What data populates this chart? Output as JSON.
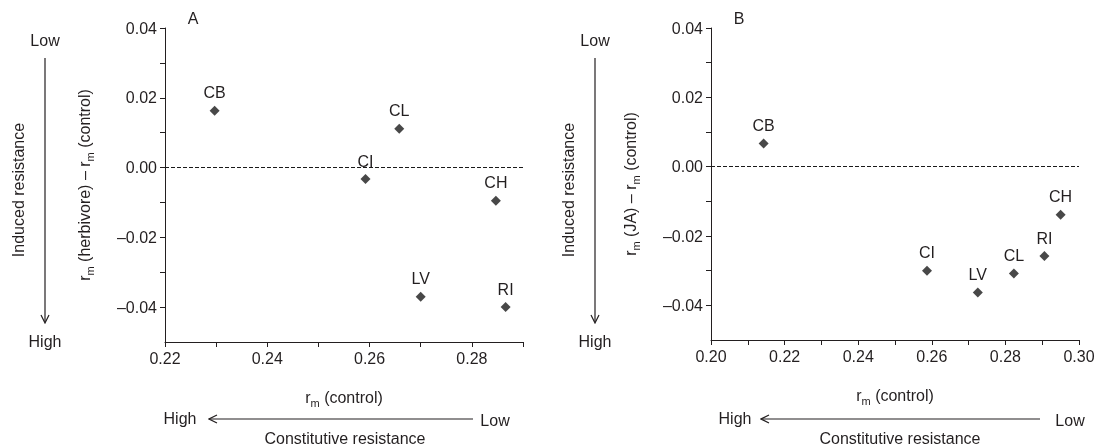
{
  "chart_data": [
    {
      "type": "scatter",
      "title": "A",
      "xlabel": "r$_{m}$ (control)",
      "ylabel": "r$_{m}$ (herbivore) – r$_{m}$ (control)",
      "marker": "diamond",
      "grid": false,
      "x": [
        0.2297,
        0.2658,
        0.2592,
        0.2847,
        0.27,
        0.2866
      ],
      "series": [
        {
          "color": "#1a1a1a",
          "values": [
            0.0163,
            0.0111,
            -0.0033,
            -0.0095,
            -0.037,
            -0.04
          ]
        }
      ],
      "xlim": [
        0.22,
        0.29
      ],
      "xticks": [
        {
          "value": 0.22,
          "label": "0.22"
        },
        {
          "value": 0.23,
          "label": null
        },
        {
          "value": 0.24,
          "label": "0.24"
        },
        {
          "value": 0.25,
          "label": null
        },
        {
          "value": 0.26,
          "label": "0.26"
        },
        {
          "value": 0.27,
          "label": null
        },
        {
          "value": 0.28,
          "label": "0.28"
        },
        {
          "value": 0.29,
          "label": null
        }
      ],
      "ylim": [
        -0.05,
        0.04
      ],
      "yticks": [
        {
          "value": -0.04,
          "label": "–0.04"
        },
        {
          "value": -0.03,
          "label": null
        },
        {
          "value": -0.02,
          "label": "–0.02"
        },
        {
          "value": -0.01,
          "label": null
        },
        {
          "value": 0,
          "label": "0.00"
        },
        {
          "value": 0.01,
          "label": null
        },
        {
          "value": 0.02,
          "label": "0.02"
        },
        {
          "value": 0.03,
          "label": null
        },
        {
          "value": 0.04,
          "label": "0.04"
        }
      ],
      "ref_lines": [
        {
          "axis": "y",
          "value": 0,
          "line_style": "dashed",
          "color": "#1a1a1a"
        }
      ],
      "annotations": [
        "Low",
        "High",
        "Induced resistance",
        "High",
        "Low",
        "Constitutive resistance",
        {
          "text": "CB",
          "x": 0.2297,
          "y": 0.0163
        },
        {
          "text": "CL",
          "x": 0.2658,
          "y": 0.0111
        },
        {
          "text": "CI",
          "x": 0.2592,
          "y": -0.0033
        },
        {
          "text": "CH",
          "x": 0.2847,
          "y": -0.0095
        },
        {
          "text": "LV",
          "x": 0.27,
          "y": -0.037
        },
        {
          "text": "RI",
          "x": 0.2866,
          "y": -0.04
        }
      ]
    },
    {
      "type": "scatter",
      "title": "B",
      "xlabel": "r$_{m}$ (control)",
      "ylabel": "r$_{m}$ (JA) – r$_{m}$ (control)",
      "marker": "diamond",
      "grid": false,
      "x": [
        0.2143,
        0.2587,
        0.2725,
        0.2823,
        0.2906,
        0.295
      ],
      "series": [
        {
          "color": "#1a1a1a",
          "values": [
            0.0067,
            -0.03,
            -0.0363,
            -0.0308,
            -0.0258,
            -0.0139
          ]
        }
      ],
      "xlim": [
        0.2,
        0.3
      ],
      "xticks": [
        {
          "value": 0.2,
          "label": "0.20"
        },
        {
          "value": 0.21,
          "label": null
        },
        {
          "value": 0.22,
          "label": "0.22"
        },
        {
          "value": 0.23,
          "label": null
        },
        {
          "value": 0.24,
          "label": "0.24"
        },
        {
          "value": 0.25,
          "label": null
        },
        {
          "value": 0.26,
          "label": "0.26"
        },
        {
          "value": 0.27,
          "label": null
        },
        {
          "value": 0.28,
          "label": "0.28"
        },
        {
          "value": 0.29,
          "label": null
        },
        {
          "value": 0.3,
          "label": "0.30"
        }
      ],
      "ylim": [
        -0.05,
        0.04
      ],
      "yticks": [
        {
          "value": -0.04,
          "label": "–0.04"
        },
        {
          "value": -0.03,
          "label": null
        },
        {
          "value": -0.02,
          "label": "–0.02"
        },
        {
          "value": -0.01,
          "label": null
        },
        {
          "value": 0,
          "label": "0.00"
        },
        {
          "value": 0.01,
          "label": null
        },
        {
          "value": 0.02,
          "label": "0.02"
        },
        {
          "value": 0.03,
          "label": null
        },
        {
          "value": 0.04,
          "label": "0.04"
        }
      ],
      "ref_lines": [
        {
          "axis": "y",
          "value": 0,
          "line_style": "dashed",
          "color": "#1a1a1a"
        }
      ],
      "annotations": [
        "Low",
        "High",
        "Induced resistance",
        "High",
        "Low",
        "Constitutive resistance",
        {
          "text": "CB",
          "x": 0.2143,
          "y": 0.0067
        },
        {
          "text": "CI",
          "x": 0.2587,
          "y": -0.03
        },
        {
          "text": "LV",
          "x": 0.2725,
          "y": -0.0363
        },
        {
          "text": "CL",
          "x": 0.2823,
          "y": -0.0308
        },
        {
          "text": "RI",
          "x": 0.2906,
          "y": -0.0258
        },
        {
          "text": "CH",
          "x": 0.295,
          "y": -0.0139
        }
      ]
    }
  ]
}
